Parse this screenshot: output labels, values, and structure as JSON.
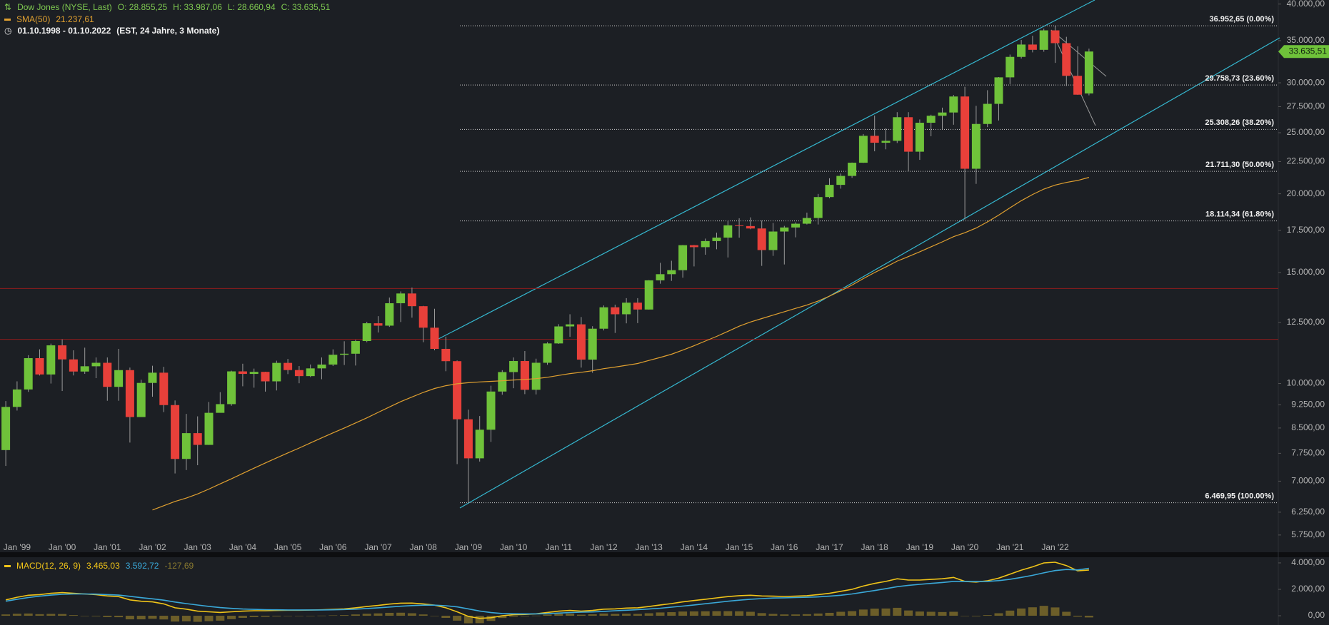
{
  "chart_data": [
    {
      "type": "candlestick",
      "title": "Dow Jones (NYSE, Last)",
      "ohlc_labels": [
        "O: 28.855,25",
        "H: 33.987,06",
        "L: 28.660,94",
        "C: 33.635,51"
      ],
      "date_range": "01.10.1998 - 01.10.2022",
      "date_note": "(EST, 24 Jahre, 3 Monate)",
      "last_price_label": "33.635,51",
      "up_color": "#6fc23a",
      "down_color": "#e8403a",
      "log_scale": true,
      "ylim": [
        5600,
        40600
      ],
      "yticks": [
        {
          "value": 5750,
          "label": "5.750,00"
        },
        {
          "value": 6250,
          "label": "6.250,00"
        },
        {
          "value": 7000,
          "label": "7.000,00"
        },
        {
          "value": 7750,
          "label": "7.750,00"
        },
        {
          "value": 8500,
          "label": "8.500,00"
        },
        {
          "value": 9250,
          "label": "9.250,00"
        },
        {
          "value": 10000,
          "label": "10.000,00"
        },
        {
          "value": 12500,
          "label": "12.500,00"
        },
        {
          "value": 15000,
          "label": "15.000,00"
        },
        {
          "value": 17500,
          "label": "17.500,00"
        },
        {
          "value": 20000,
          "label": "20.000,00"
        },
        {
          "value": 22500,
          "label": "22.500,00"
        },
        {
          "value": 25000,
          "label": "25.000,00"
        },
        {
          "value": 27500,
          "label": "27.500,00"
        },
        {
          "value": 30000,
          "label": "30.000,00"
        },
        {
          "value": 35000,
          "label": "35.000,00"
        },
        {
          "value": 40000,
          "label": "40.000,00"
        }
      ],
      "categories": [
        null,
        "Jan '99",
        null,
        null,
        null,
        "Jan '00",
        null,
        null,
        null,
        "Jan '01",
        null,
        null,
        null,
        "Jan '02",
        null,
        null,
        null,
        "Jan '03",
        null,
        null,
        null,
        "Jan '04",
        null,
        null,
        null,
        "Jan '05",
        null,
        null,
        null,
        "Jan '06",
        null,
        null,
        null,
        "Jan '07",
        null,
        null,
        null,
        "Jan '08",
        null,
        null,
        null,
        "Jan '09",
        null,
        null,
        null,
        "Jan '10",
        null,
        null,
        null,
        "Jan '11",
        null,
        null,
        null,
        "Jan '12",
        null,
        null,
        null,
        "Jan '13",
        null,
        null,
        null,
        "Jan '14",
        null,
        null,
        null,
        "Jan '15",
        null,
        null,
        null,
        "Jan '16",
        null,
        null,
        null,
        "Jan '17",
        null,
        null,
        null,
        "Jan '18",
        null,
        null,
        null,
        "Jan '19",
        null,
        null,
        null,
        "Jan '20",
        null,
        null,
        null,
        "Jan '21",
        null,
        null,
        null,
        "Jan '22",
        null,
        null,
        null
      ],
      "open": [
        7842,
        9181,
        9786,
        10971,
        10337,
        11497,
        10922,
        10448,
        10651,
        10787,
        9879,
        10502,
        8848,
        10022,
        10404,
        9243,
        7592,
        8342,
        7992,
        8985,
        9275,
        10454,
        10358,
        10435,
        10080,
        10783,
        10504,
        10275,
        10569,
        10718,
        11109,
        11150,
        11679,
        12463,
        12354,
        13409,
        13896,
        13265,
        12263,
        11350,
        10851,
        8776,
        7609,
        8447,
        9712,
        10428,
        10857,
        9774,
        10788,
        11578,
        12320,
        12414,
        10913,
        12218,
        13212,
        12880,
        13437,
        13104,
        14579,
        14910,
        15130,
        16577,
        16458,
        16827,
        17043,
        17823,
        17776,
        17620,
        16285,
        17425,
        17685,
        17930,
        18308,
        19763,
        20663,
        21350,
        22405,
        24719,
        24103,
        24271,
        26458,
        23327,
        25929,
        26600,
        26917,
        28538,
        21917,
        25813,
        27782,
        30606,
        32982,
        34503,
        33844,
        36338,
        34678,
        30775,
        28855.25
      ],
      "high": [
        9380,
        10080,
        11090,
        11330,
        11570,
        11750,
        11290,
        11400,
        11000,
        11000,
        11350,
        10600,
        10140,
        10670,
        10630,
        9400,
        8950,
        8870,
        9350,
        9690,
        10480,
        10750,
        10560,
        10440,
        10870,
        10940,
        10660,
        10720,
        11000,
        11330,
        11670,
        11730,
        12530,
        12790,
        13690,
        14000,
        14200,
        13280,
        13140,
        11870,
        10880,
        9090,
        8880,
        9920,
        10500,
        11000,
        11260,
        10950,
        11630,
        12420,
        12880,
        12750,
        12330,
        13300,
        13340,
        13660,
        13660,
        14590,
        15540,
        15660,
        16590,
        16590,
        16980,
        17350,
        18100,
        18290,
        18350,
        18140,
        17980,
        17790,
        18020,
        18670,
        19990,
        21170,
        21540,
        22420,
        24880,
        26620,
        25400,
        26950,
        26950,
        26240,
        26700,
        27400,
        28700,
        29570,
        27580,
        29200,
        30640,
        33260,
        35090,
        35630,
        36570,
        36952.65,
        35490,
        34280,
        33987.06
      ],
      "low": [
        7400,
        9060,
        9700,
        10300,
        10000,
        9730,
        10300,
        10360,
        10200,
        9390,
        9390,
        8060,
        8850,
        9530,
        9010,
        7200,
        7290,
        7420,
        7990,
        8990,
        9220,
        9900,
        9850,
        9710,
        9750,
        10350,
        10010,
        10240,
        10160,
        10660,
        10700,
        10680,
        11630,
        12050,
        12300,
        12520,
        12720,
        11630,
        11290,
        10460,
        7450,
        6469.95,
        7520,
        8080,
        9600,
        9830,
        9620,
        9610,
        10710,
        11560,
        11860,
        10600,
        10400,
        12140,
        12030,
        12460,
        12470,
        13100,
        14400,
        14550,
        14720,
        15340,
        16010,
        16330,
        15850,
        17040,
        17570,
        15370,
        15940,
        15450,
        17060,
        17880,
        17880,
        19680,
        20380,
        21200,
        22390,
        23360,
        23530,
        24080,
        21710,
        22640,
        24680,
        25340,
        25740,
        18213,
        20740,
        25520,
        26140,
        29860,
        32780,
        33530,
        33610,
        32270,
        29650,
        28715,
        28660.94
      ],
      "close": [
        9181,
        9786,
        10971,
        10337,
        11497,
        10922,
        10448,
        10651,
        10787,
        9879,
        10502,
        8848,
        10022,
        10404,
        9243,
        7592,
        8342,
        7992,
        8985,
        9275,
        10454,
        10358,
        10435,
        10080,
        10783,
        10504,
        10275,
        10569,
        10718,
        11109,
        11150,
        11679,
        12463,
        12354,
        13409,
        13896,
        13265,
        12263,
        11350,
        10851,
        8776,
        7609,
        8447,
        9712,
        10428,
        10857,
        9774,
        10788,
        11578,
        12320,
        12414,
        10913,
        12218,
        13212,
        12880,
        13437,
        13104,
        14579,
        14910,
        15130,
        16577,
        16458,
        16827,
        17043,
        17823,
        17776,
        17620,
        16285,
        17425,
        17685,
        17930,
        18308,
        19763,
        20663,
        21350,
        22405,
        24719,
        24103,
        24271,
        26458,
        23327,
        25929,
        26600,
        26917,
        28538,
        21917,
        25813,
        27782,
        30606,
        32982,
        34503,
        33844,
        36338,
        34678,
        30775,
        28726,
        33635.51
      ],
      "overlays": [
        {
          "name": "SMA(50)",
          "value_label": "21.237,61",
          "color": "#e0a030",
          "values": [
            null,
            null,
            null,
            null,
            null,
            null,
            null,
            null,
            null,
            null,
            null,
            null,
            null,
            6300,
            6400,
            6500,
            6580,
            6680,
            6800,
            6930,
            7060,
            7200,
            7340,
            7480,
            7620,
            7760,
            7900,
            8050,
            8200,
            8350,
            8500,
            8660,
            8820,
            9000,
            9180,
            9360,
            9520,
            9680,
            9820,
            9920,
            9990,
            10030,
            10060,
            10080,
            10100,
            10130,
            10150,
            10180,
            10230,
            10300,
            10370,
            10420,
            10480,
            10560,
            10620,
            10690,
            10760,
            10880,
            11000,
            11130,
            11300,
            11480,
            11680,
            11880,
            12100,
            12330,
            12520,
            12680,
            12840,
            13000,
            13160,
            13320,
            13520,
            13760,
            14030,
            14330,
            14670,
            15000,
            15310,
            15640,
            15900,
            16180,
            16480,
            16780,
            17100,
            17350,
            17650,
            18050,
            18500,
            19000,
            19500,
            19950,
            20350,
            20650,
            20850,
            21000,
            21237.61
          ]
        }
      ],
      "fib_levels": [
        {
          "value": 36952.65,
          "label": "36.952,65 (0.00%)"
        },
        {
          "value": 29758.73,
          "label": "29.758,73 (23.60%)"
        },
        {
          "value": 25308.26,
          "label": "25.308,26 (38.20%)"
        },
        {
          "value": 21711.3,
          "label": "21.711,30 (50.00%)"
        },
        {
          "value": 18114.34,
          "label": "18.114,34 (61.80%)"
        },
        {
          "value": 6469.95,
          "label": "6.469,95 (100.00%)"
        }
      ],
      "horizontal_lines": [
        {
          "value": 14150,
          "color": "#8e1c1c"
        },
        {
          "value": 11750,
          "color": "#8e1c1c"
        }
      ]
    },
    {
      "type": "macd",
      "ylim": [
        -700,
        4430
      ],
      "yticks": [
        {
          "value": 0,
          "label": "0,00"
        },
        {
          "value": 2000,
          "label": "2.000,00"
        },
        {
          "value": 4000,
          "label": "4.000,00"
        }
      ],
      "series": [
        {
          "name": "MACD(12, 26, 9)",
          "value_label": "3.465,03",
          "color": "#f0c419",
          "kind": "line",
          "values": [
            1200,
            1400,
            1550,
            1600,
            1700,
            1750,
            1700,
            1650,
            1600,
            1500,
            1450,
            1200,
            1100,
            1050,
            900,
            600,
            500,
            350,
            300,
            250,
            300,
            350,
            380,
            380,
            400,
            420,
            420,
            430,
            450,
            480,
            520,
            600,
            700,
            780,
            880,
            950,
            960,
            900,
            800,
            600,
            300,
            -50,
            -200,
            -150,
            0,
            80,
            100,
            150,
            250,
            350,
            400,
            350,
            400,
            500,
            520,
            580,
            600,
            700,
            820,
            920,
            1050,
            1150,
            1250,
            1350,
            1450,
            1520,
            1550,
            1500,
            1480,
            1460,
            1480,
            1520,
            1600,
            1700,
            1850,
            2000,
            2250,
            2450,
            2600,
            2800,
            2700,
            2700,
            2750,
            2800,
            2900,
            2600,
            2550,
            2650,
            2850,
            3150,
            3450,
            3700,
            4000,
            4050,
            3800,
            3400,
            3465.03
          ]
        },
        {
          "value_label": "3.592,72",
          "color": "#3aa8d8",
          "kind": "line",
          "values": [
            1100,
            1250,
            1380,
            1480,
            1560,
            1620,
            1650,
            1650,
            1640,
            1600,
            1560,
            1470,
            1370,
            1280,
            1180,
            1040,
            920,
            810,
            710,
            620,
            560,
            510,
            480,
            460,
            450,
            440,
            440,
            440,
            440,
            450,
            470,
            500,
            550,
            600,
            660,
            720,
            770,
            800,
            800,
            760,
            670,
            520,
            360,
            240,
            170,
            150,
            140,
            140,
            160,
            200,
            240,
            270,
            290,
            330,
            380,
            420,
            460,
            510,
            570,
            650,
            730,
            820,
            910,
            1000,
            1100,
            1180,
            1250,
            1300,
            1340,
            1360,
            1380,
            1400,
            1430,
            1480,
            1550,
            1650,
            1780,
            1910,
            2050,
            2200,
            2300,
            2380,
            2450,
            2520,
            2600,
            2600,
            2590,
            2600,
            2660,
            2760,
            2900,
            3060,
            3250,
            3420,
            3500,
            3470,
            3592.72
          ]
        },
        {
          "value_label": "-127,69",
          "color": "#7a6a2a",
          "kind": "bar",
          "values": [
            100,
            150,
            170,
            120,
            140,
            130,
            50,
            0,
            -40,
            -100,
            -110,
            -270,
            -270,
            -230,
            -280,
            -440,
            -420,
            -460,
            -410,
            -370,
            -260,
            -160,
            -100,
            -80,
            -50,
            -20,
            -20,
            -10,
            10,
            30,
            50,
            100,
            150,
            180,
            220,
            230,
            190,
            100,
            0,
            -160,
            -370,
            -570,
            -560,
            -390,
            -170,
            -70,
            -40,
            10,
            90,
            150,
            160,
            80,
            110,
            170,
            140,
            160,
            140,
            190,
            250,
            270,
            320,
            330,
            340,
            350,
            350,
            340,
            300,
            200,
            140,
            100,
            100,
            120,
            170,
            220,
            300,
            350,
            470,
            540,
            550,
            600,
            400,
            320,
            300,
            280,
            300,
            0,
            -40,
            50,
            190,
            390,
            550,
            640,
            750,
            630,
            300,
            -70,
            -127.69
          ]
        }
      ]
    }
  ]
}
